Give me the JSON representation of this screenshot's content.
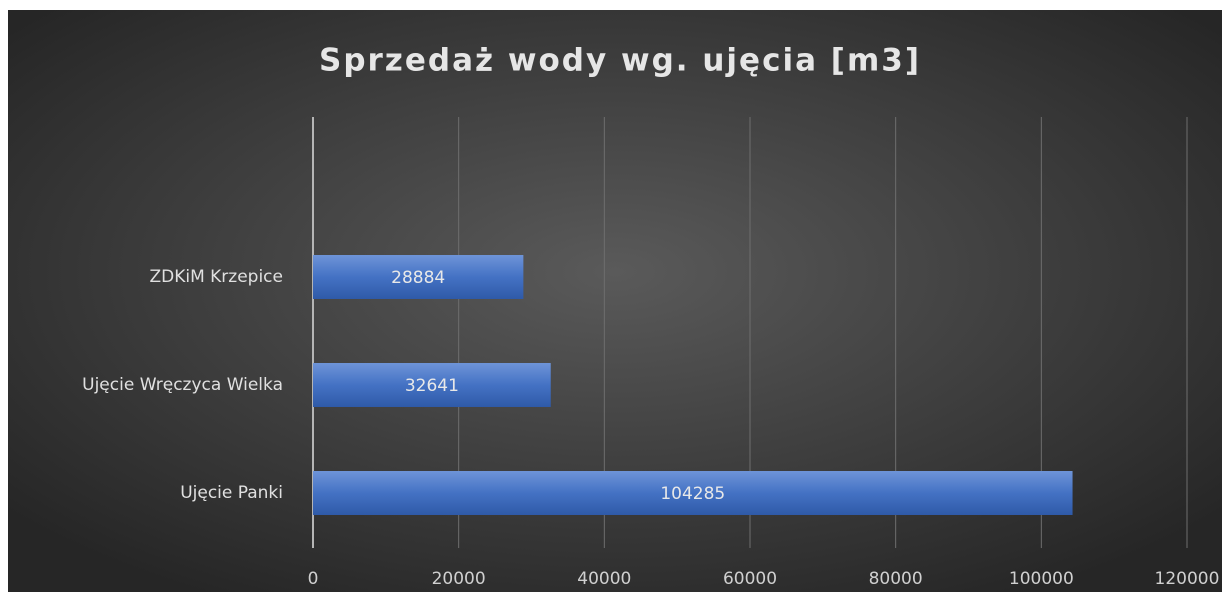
{
  "chart_data": {
    "type": "bar",
    "orientation": "horizontal",
    "title": "Sprzedaż wody wg. ujęcia [m3]",
    "categories": [
      "ZDKiM Krzepice",
      "Ujęcie Wręczyca Wielka",
      "Ujęcie Panki"
    ],
    "values": [
      28884,
      32641,
      104285
    ],
    "color": "#4472c4",
    "xlim": [
      0,
      120000
    ],
    "xticks": [
      0,
      20000,
      40000,
      60000,
      80000,
      100000,
      120000
    ],
    "grid": true
  }
}
